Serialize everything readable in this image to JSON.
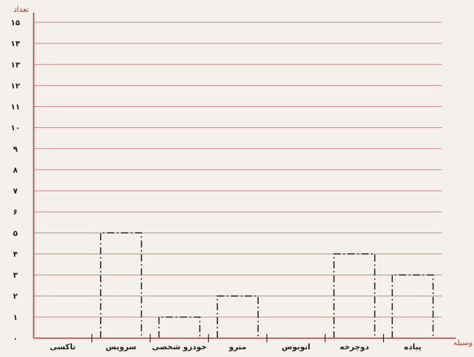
{
  "header_text": "",
  "chart_data": {
    "type": "bar",
    "style": "hand-drawn dashed bar outlines, empty fill",
    "ylabel": "تعداد",
    "xlabel": "وسیله",
    "ylim": [
      0,
      15
    ],
    "yticks": [
      "۰",
      "۱",
      "۲",
      "۳",
      "۴",
      "۵",
      "۶",
      "۷",
      "۸",
      "۹",
      "۱۰",
      "۱۱",
      "۱۲",
      "۱۳",
      "۱۴",
      "۱۵"
    ],
    "categories": [
      "تاکسی",
      "سرویس",
      "خودرو شخصی",
      "مترو",
      "اتوبوس",
      "دوچرخه",
      "پیاده"
    ],
    "values": [
      0,
      5,
      1,
      2,
      0,
      4,
      3
    ],
    "grid": true,
    "gridline_color": "#c98080",
    "axis_color": "#c0392b",
    "bar_color": "#222222"
  }
}
